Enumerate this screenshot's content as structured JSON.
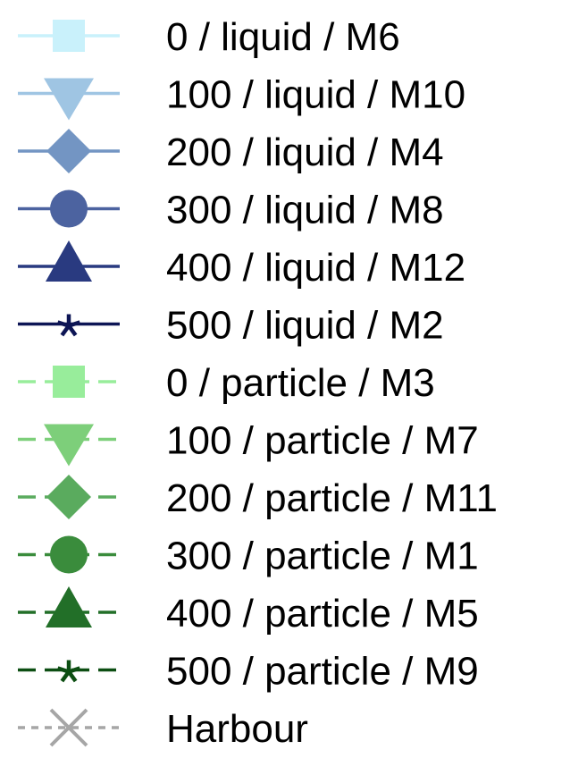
{
  "chart_data": {
    "type": "legend",
    "entries": [
      {
        "label": "0 / liquid / M6",
        "color": "#c9f1fb",
        "marker": "square",
        "line": "solid"
      },
      {
        "label": "100 / liquid / M10",
        "color": "#9fc5e3",
        "marker": "triangle-down",
        "line": "solid"
      },
      {
        "label": "200 / liquid / M4",
        "color": "#7395c3",
        "marker": "diamond",
        "line": "solid"
      },
      {
        "label": "300 / liquid / M8",
        "color": "#4c63a0",
        "marker": "circle",
        "line": "solid"
      },
      {
        "label": "400 / liquid / M12",
        "color": "#293a80",
        "marker": "triangle-up",
        "line": "solid"
      },
      {
        "label": "500 / liquid / M2",
        "color": "#0d1555",
        "marker": "asterisk",
        "line": "solid"
      },
      {
        "label": "0 / particle / M3",
        "color": "#98ed9b",
        "marker": "square",
        "line": "dashed"
      },
      {
        "label": "100 / particle / M7",
        "color": "#7dcf7a",
        "marker": "triangle-down",
        "line": "dashed"
      },
      {
        "label": "200 / particle / M11",
        "color": "#5aab5e",
        "marker": "diamond",
        "line": "dashed"
      },
      {
        "label": "300 / particle / M1",
        "color": "#3a8c3c",
        "marker": "circle",
        "line": "dashed"
      },
      {
        "label": "400 / particle / M5",
        "color": "#226f28",
        "marker": "triangle-up",
        "line": "dashed"
      },
      {
        "label": "500 / particle / M9",
        "color": "#0c4e12",
        "marker": "asterisk",
        "line": "dashed"
      },
      {
        "label": "Harbour",
        "color": "#a6a6a6",
        "marker": "x",
        "line": "dotted"
      }
    ]
  }
}
